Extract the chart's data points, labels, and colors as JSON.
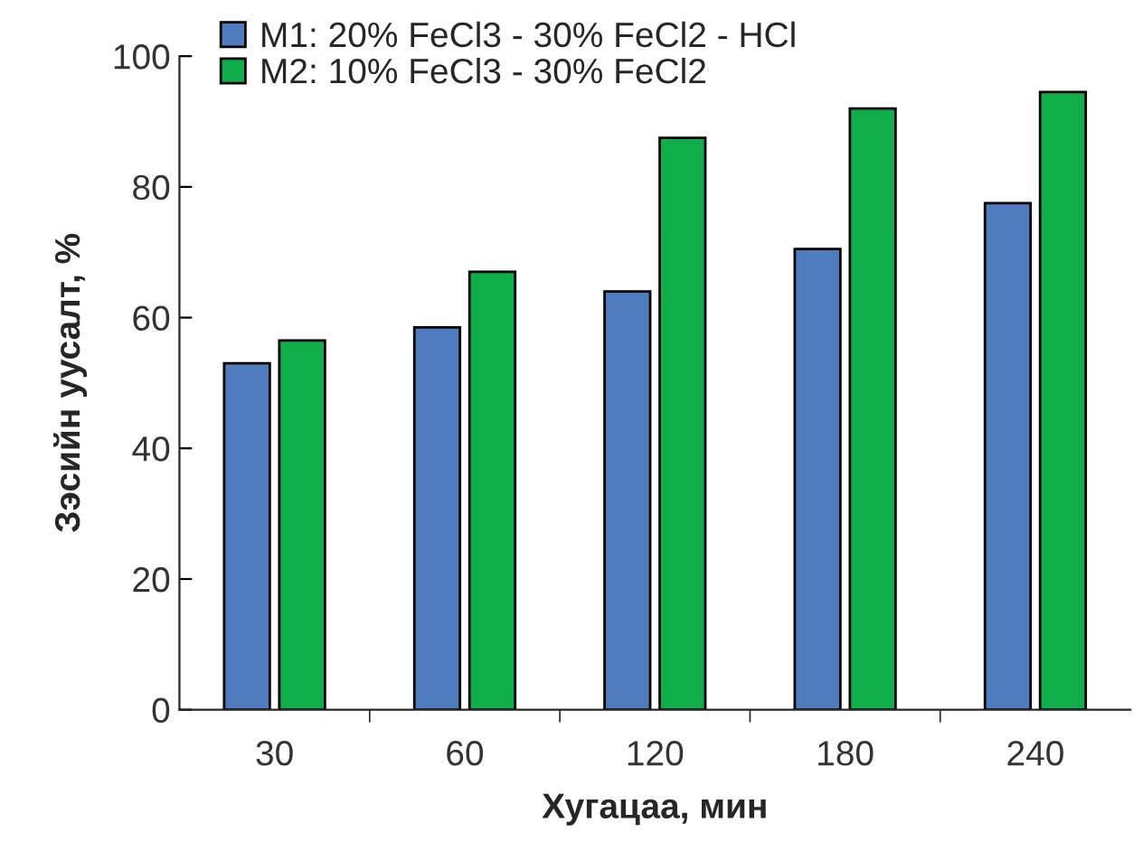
{
  "chart_data": {
    "type": "bar",
    "xlabel": "Хугацаа, мин",
    "ylabel": "Зэсийн уусалт, %",
    "categories": [
      "30",
      "60",
      "120",
      "180",
      "240"
    ],
    "series": [
      {
        "name": "M1: 20% FeCl3 - 30% FeCl2 - HCl",
        "color": "#4f7bbf",
        "values": [
          53,
          58.5,
          64,
          70.5,
          77.5
        ]
      },
      {
        "name": "M2: 10% FeCl3 - 30% FeCl2",
        "color": "#0fae4a",
        "values": [
          56.5,
          67,
          87.5,
          92,
          94.5
        ]
      }
    ],
    "ylim": [
      0,
      100
    ],
    "yticks": [
      0,
      20,
      40,
      60,
      80,
      100
    ],
    "grid": false,
    "legend": "top left"
  }
}
